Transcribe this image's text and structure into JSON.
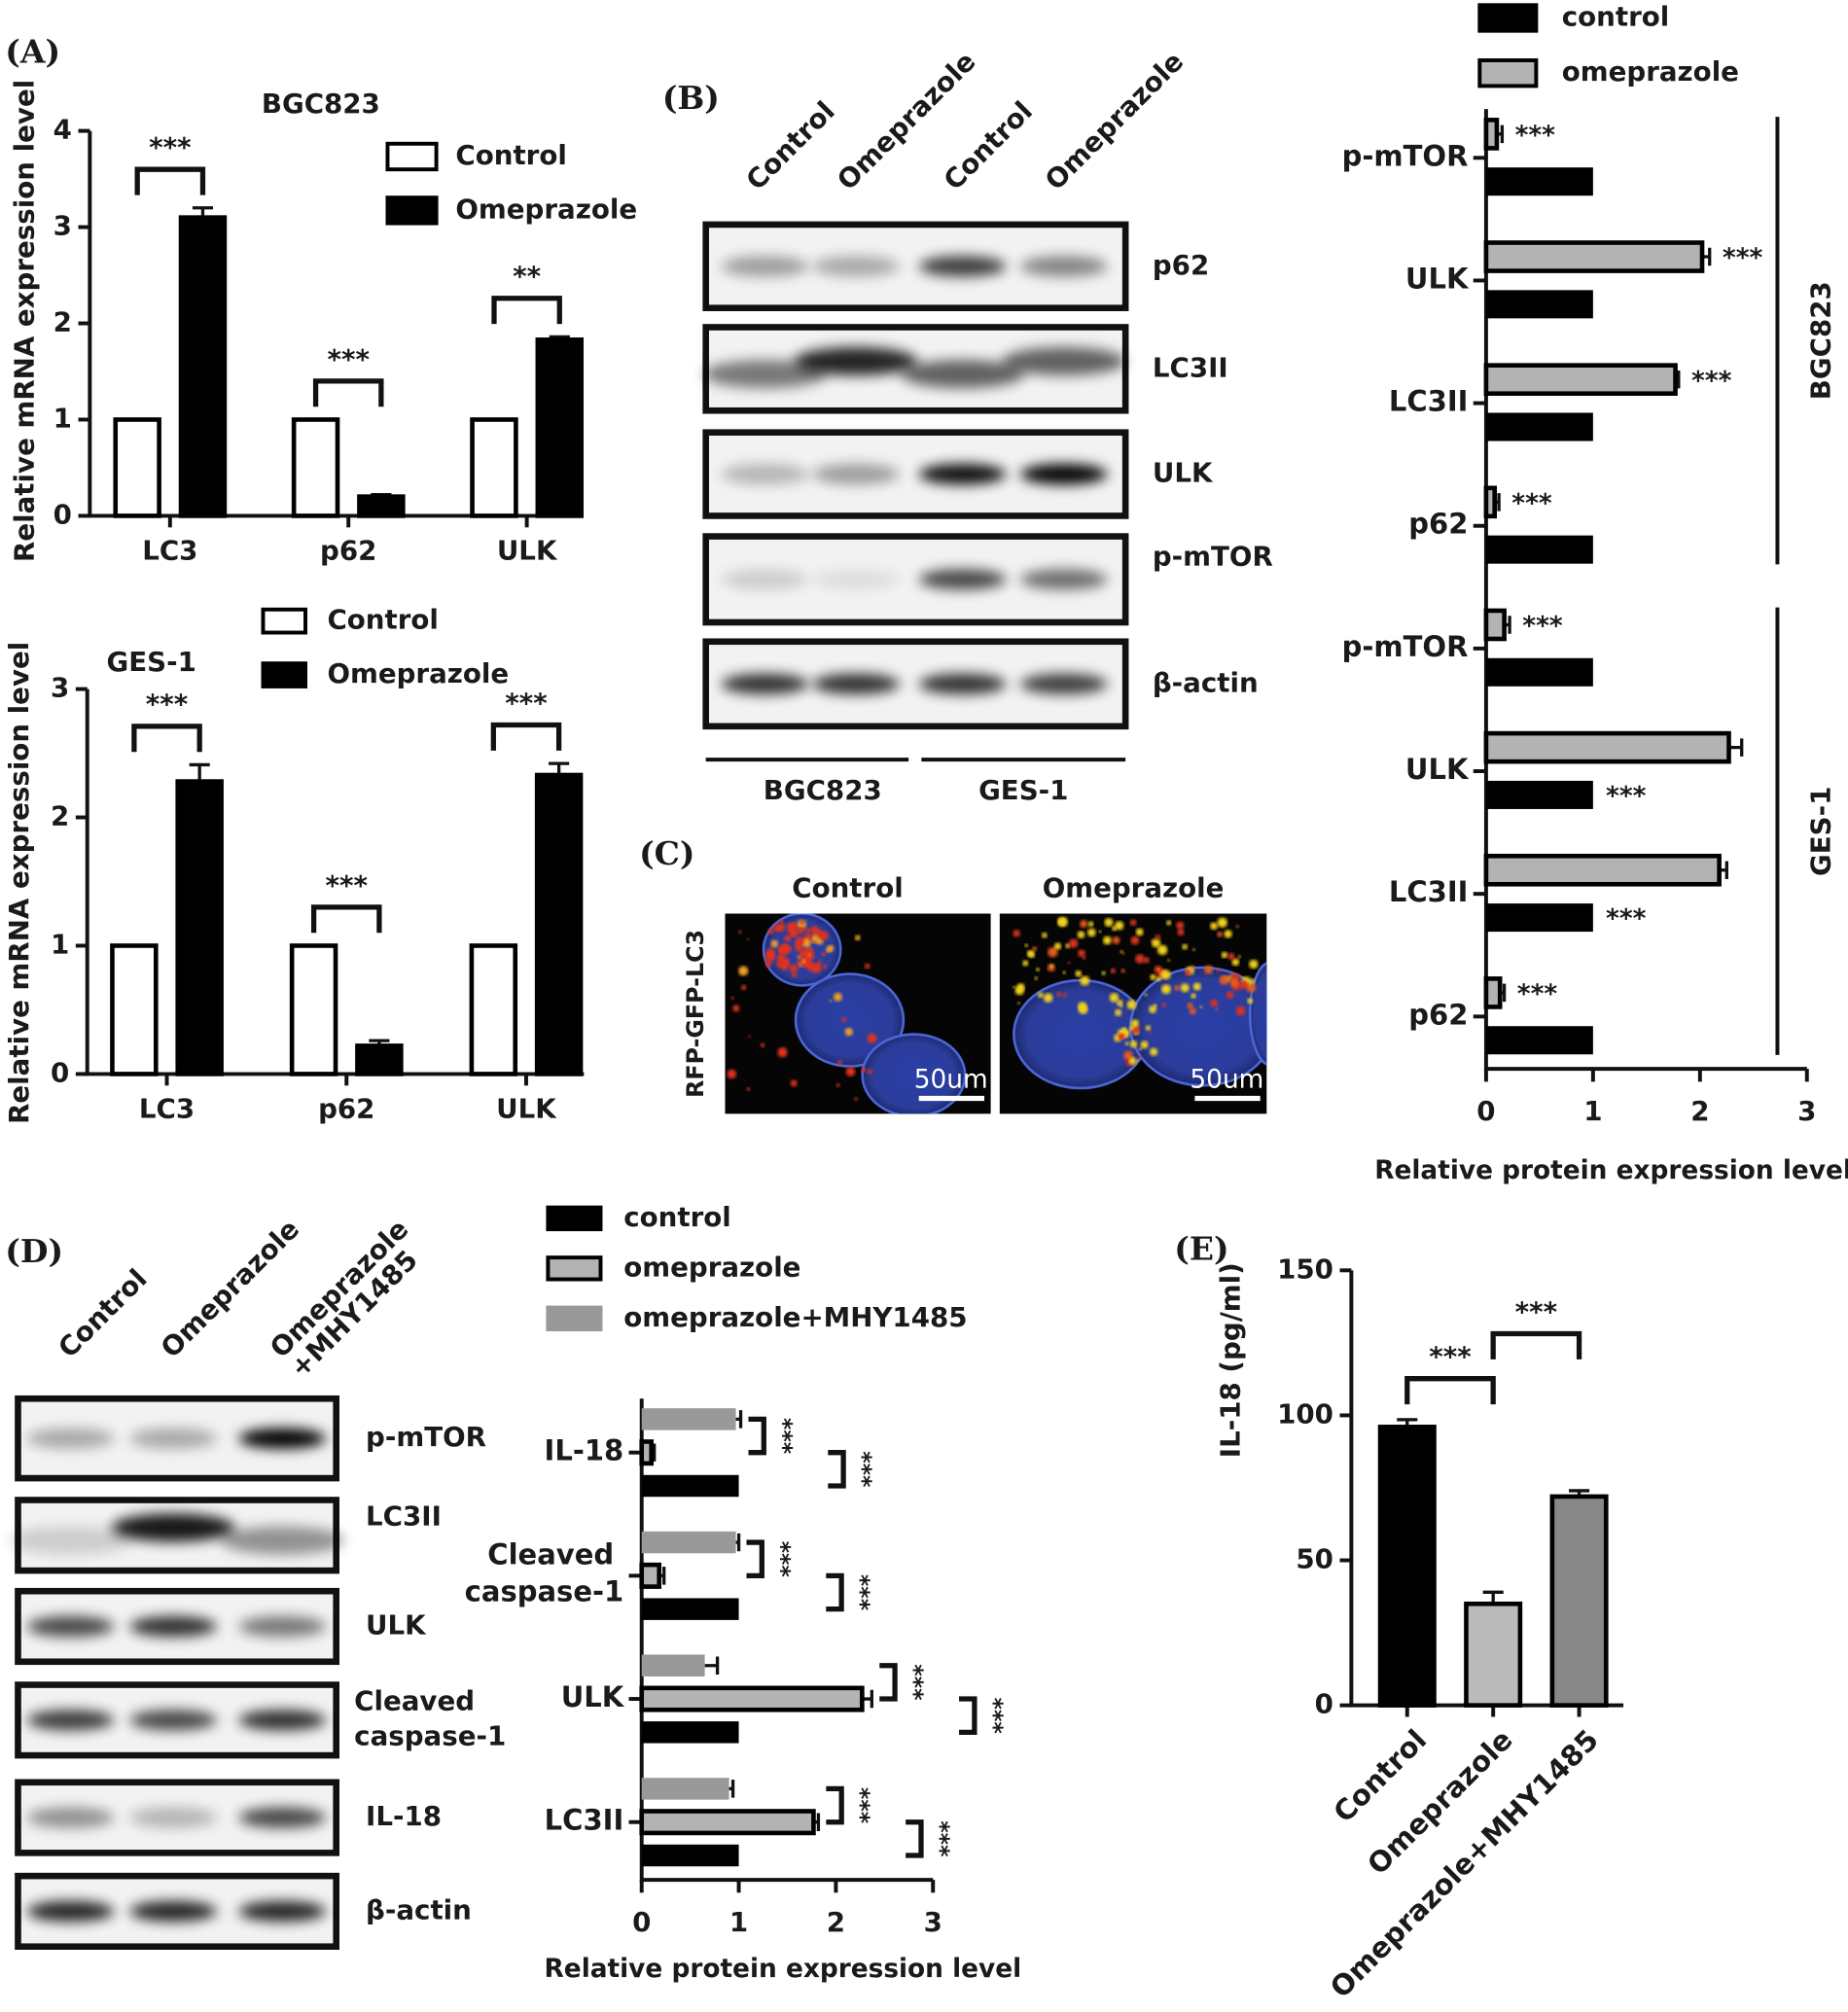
{
  "figure": {
    "panels": [
      "(A)",
      "(B)",
      "(C)",
      "(D)",
      "(E)"
    ],
    "blot_b": {
      "columns": [
        "Control",
        "Omeprazole",
        "Control",
        "Omeprazole"
      ],
      "rows": [
        "p62",
        "LC3II",
        "ULK",
        "p-mTOR",
        "β-actin"
      ],
      "groups": [
        "BGC823",
        "GES-1"
      ]
    },
    "imaging_c": {
      "columns": [
        "Control",
        "Omeprazole"
      ],
      "stain": "RFP-GFP-LC3",
      "scale_bars": [
        "50um",
        "50um"
      ]
    },
    "blot_d": {
      "columns": [
        "Control",
        "Omeprazole",
        "Omeprazole +MHY1485"
      ],
      "rows": [
        "p-mTOR",
        "LC3II",
        "ULK",
        "Cleaved caspase-1",
        "IL-18",
        "β-actin"
      ]
    }
  },
  "chart_data": [
    {
      "type": "bar",
      "title": "BGC823",
      "ylabel": "Relative mRNA expression level",
      "categories": [
        "LC3",
        "p62",
        "ULK"
      ],
      "series": [
        {
          "name": "Control",
          "color": "#ffffff",
          "edgecolor": "#000000",
          "values": [
            1,
            1,
            1
          ]
        },
        {
          "name": "Omeprazole",
          "color": "#000000",
          "values": [
            3.1,
            0.2,
            1.83
          ],
          "errors": [
            0.1,
            0.02,
            0.03
          ]
        }
      ],
      "ylim": [
        0,
        4
      ],
      "yticks": [
        0,
        1,
        2,
        3,
        4
      ],
      "significance": [
        "***",
        "***",
        "**"
      ]
    },
    {
      "type": "bar",
      "title": "GES-1",
      "ylabel": "Relative mRNA expression level",
      "categories": [
        "LC3",
        "p62",
        "ULK"
      ],
      "series": [
        {
          "name": "Control",
          "color": "#ffffff",
          "edgecolor": "#000000",
          "values": [
            1,
            1,
            1
          ]
        },
        {
          "name": "Omeprazole",
          "color": "#000000",
          "values": [
            2.28,
            0.22,
            2.33
          ],
          "errors": [
            0.13,
            0.04,
            0.09
          ]
        }
      ],
      "ylim": [
        0,
        3
      ],
      "yticks": [
        0,
        1,
        2,
        3
      ],
      "significance": [
        "***",
        "***",
        "***"
      ]
    },
    {
      "type": "barh",
      "xlabel": "Relative protein expression level",
      "categories": [
        "p-mTOR",
        "ULK",
        "LC3II",
        "p62",
        "p-mTOR",
        "ULK",
        "LC3II",
        "p62"
      ],
      "groups": [
        "BGC823",
        "GES-1"
      ],
      "series": [
        {
          "name": "control",
          "color": "#000000",
          "values": [
            1,
            1,
            1,
            1,
            1,
            1,
            1,
            1
          ]
        },
        {
          "name": "omeprazole",
          "color": "#b3b3b3",
          "edgecolor": "#000000",
          "values": [
            0.1,
            2.02,
            1.77,
            0.08,
            0.17,
            2.27,
            2.18,
            0.13
          ],
          "errors": [
            0.05,
            0.07,
            0.03,
            0.04,
            0.05,
            0.12,
            0.07,
            0.04
          ]
        }
      ],
      "xlim": [
        0,
        3
      ],
      "xticks": [
        0,
        1,
        2,
        3
      ],
      "significance": [
        "***",
        "***",
        "***",
        "***",
        "***",
        "***",
        "***",
        "***"
      ]
    },
    {
      "type": "barh",
      "xlabel": "Relative protein expression level",
      "categories": [
        "IL-18",
        "Cleaved caspase-1",
        "ULK",
        "LC3II"
      ],
      "series": [
        {
          "name": "control",
          "color": "#000000",
          "values": [
            1,
            1,
            1,
            1
          ]
        },
        {
          "name": "omeprazole",
          "color": "#b3b3b3",
          "edgecolor": "#000000",
          "values": [
            0.1,
            0.18,
            2.27,
            1.77
          ],
          "errors": [
            0.03,
            0.05,
            0.1,
            0.05
          ]
        },
        {
          "name": "omeprazole+MHY1485",
          "color": "#999999",
          "values": [
            0.97,
            0.97,
            0.65,
            0.9
          ],
          "errors": [
            0.05,
            0.03,
            0.13,
            0.04
          ]
        }
      ],
      "xlim": [
        0,
        3
      ],
      "xticks": [
        0,
        1,
        2,
        3
      ],
      "significance": [
        [
          "***",
          "***"
        ],
        [
          "***",
          "***"
        ],
        [
          "***",
          "***"
        ],
        [
          "***",
          "***"
        ]
      ]
    },
    {
      "type": "bar",
      "ylabel": "IL-18  (pg/ml)",
      "categories": [
        "Control",
        "Omeprazole",
        "Omeprazole+MHY1485"
      ],
      "values": [
        96,
        35,
        72
      ],
      "errors": [
        2.5,
        4,
        2
      ],
      "colors": [
        "#000000",
        "#bbbbbb",
        "#888888"
      ],
      "edgecolor": "#000000",
      "ylim": [
        0,
        150
      ],
      "yticks": [
        0,
        50,
        100,
        150
      ],
      "significance": [
        "***",
        "***"
      ]
    }
  ]
}
